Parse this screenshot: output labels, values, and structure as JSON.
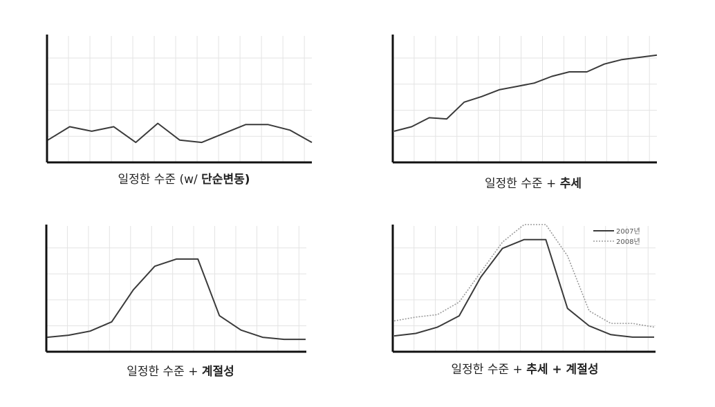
{
  "chart_data": [
    {
      "type": "line",
      "title_parts": [
        {
          "text": "일정한 수준 (w/ ",
          "bold": false
        },
        {
          "text": "단순변동)",
          "bold": true
        }
      ],
      "x": [
        1,
        2,
        3,
        4,
        5,
        6,
        7,
        8,
        9,
        10,
        11,
        12,
        13
      ],
      "ylim": [
        0,
        100
      ],
      "grid": true,
      "series": [
        {
          "values": [
            18,
            30,
            26,
            30,
            16,
            33,
            18,
            16,
            24,
            32,
            32,
            27,
            16
          ]
        }
      ]
    },
    {
      "type": "line",
      "title_parts": [
        {
          "text": "일정한 수준 + ",
          "bold": false
        },
        {
          "text": "추세",
          "bold": true
        }
      ],
      "x": [
        1,
        2,
        3,
        4,
        5,
        6,
        7,
        8,
        9,
        10,
        11,
        12,
        13,
        14,
        15,
        16
      ],
      "ylim": [
        0,
        100
      ],
      "grid": true,
      "series": [
        {
          "values": [
            26,
            30,
            38,
            37,
            52,
            57,
            63,
            66,
            69,
            75,
            79,
            79,
            86,
            90,
            92,
            94
          ]
        }
      ]
    },
    {
      "type": "line",
      "title_parts": [
        {
          "text": "일정한 수준 + ",
          "bold": false
        },
        {
          "text": "계절성",
          "bold": true
        }
      ],
      "x": [
        1,
        2,
        3,
        4,
        5,
        6,
        7,
        8,
        9,
        10,
        11,
        12,
        13
      ],
      "ylim": [
        0,
        100
      ],
      "grid": true,
      "series": [
        {
          "values": [
            12,
            14,
            18,
            27,
            58,
            81,
            88,
            88,
            33,
            19,
            12,
            10,
            10
          ]
        }
      ]
    },
    {
      "type": "line",
      "title_parts": [
        {
          "text": "일정한 수준 + ",
          "bold": false
        },
        {
          "text": "추세 + 계절성",
          "bold": true
        }
      ],
      "x": [
        1,
        2,
        3,
        4,
        5,
        6,
        7,
        8,
        9,
        10,
        11,
        12,
        13
      ],
      "ylim": [
        0,
        100
      ],
      "grid": true,
      "legend": "top-right",
      "series": [
        {
          "name": "2007년",
          "style": "solid",
          "color": "#3a3a3a",
          "values": [
            11,
            13,
            18,
            27,
            58,
            81,
            88,
            88,
            33,
            19,
            12,
            10,
            10
          ]
        },
        {
          "name": "2008년",
          "style": "dotted",
          "color": "#9a9a9a",
          "values": [
            23,
            26,
            28,
            38,
            62,
            86,
            100,
            100,
            75,
            31,
            21,
            21,
            18
          ]
        }
      ]
    }
  ]
}
